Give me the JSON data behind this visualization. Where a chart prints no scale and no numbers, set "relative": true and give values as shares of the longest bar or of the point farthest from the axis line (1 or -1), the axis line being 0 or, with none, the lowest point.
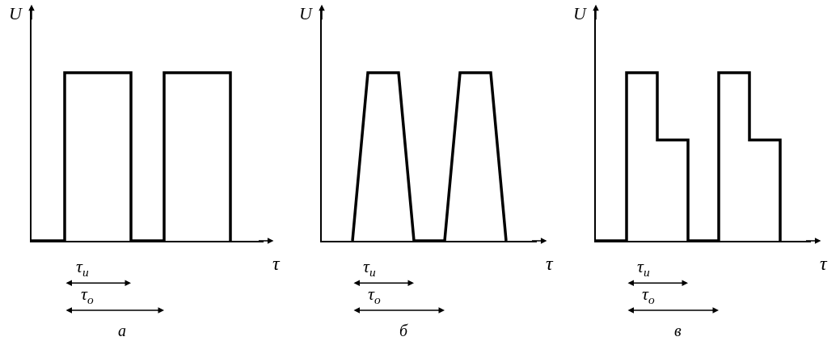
{
  "chart_data": [
    {
      "type": "step",
      "relative": true,
      "title": "а",
      "xlabel": "τ",
      "ylabel": "U",
      "annotations": [
        "τ$_{и}$",
        "τ$_{о}$"
      ],
      "categories": [
        null,
        null,
        null,
        null,
        null,
        null,
        null,
        null
      ],
      "series": [
        {
          "color": "#000000",
          "values": [
            0,
            1,
            1,
            0,
            1,
            1,
            0,
            null
          ]
        }
      ]
    },
    {
      "type": "line",
      "relative": true,
      "title": "б",
      "xlabel": "τ",
      "ylabel": "U",
      "annotations": [
        "τ$_{и}$",
        "τ$_{о}$"
      ],
      "categories": [
        null,
        null,
        null,
        null,
        null,
        null,
        null,
        null,
        null,
        null,
        null,
        null,
        null,
        null,
        null
      ],
      "series": [
        {
          "color": "#000000",
          "values": [
            null,
            null,
            0,
            1,
            1,
            1,
            0,
            0,
            0,
            1,
            1,
            1,
            0,
            null,
            null
          ]
        }
      ]
    },
    {
      "type": "step",
      "relative": true,
      "title": "в",
      "xlabel": "τ",
      "ylabel": "U",
      "annotations": [
        "τ$_{и}$",
        "τ$_{о}$"
      ],
      "categories": [
        null,
        null,
        null,
        null,
        null,
        null,
        null,
        null
      ],
      "series": [
        {
          "color": "#000000",
          "values": [
            0,
            1,
            0.6,
            0,
            1,
            0.6,
            0,
            null
          ]
        }
      ]
    }
  ]
}
